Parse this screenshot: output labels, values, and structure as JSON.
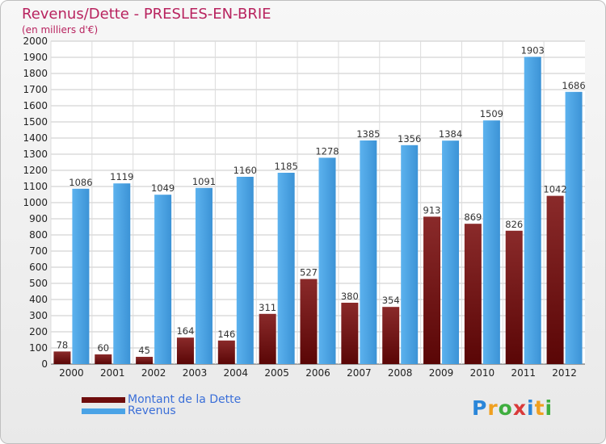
{
  "title": "Revenus/Dette - PRESLES-EN-BRIE",
  "subtitle": "(en milliers d'€)",
  "legend": [
    {
      "label": "Montant de la Dette",
      "color": "#6e0c0c"
    },
    {
      "label": "Revenus",
      "color": "#4aa3e6"
    }
  ],
  "logo": {
    "text": "Proxiti",
    "letters": [
      {
        "ch": "P",
        "color": "#2a86d9"
      },
      {
        "ch": "r",
        "color": "#f0a020"
      },
      {
        "ch": "o",
        "color": "#3fae3f"
      },
      {
        "ch": "x",
        "color": "#d93a3a"
      },
      {
        "ch": "i",
        "color": "#2a86d9"
      },
      {
        "ch": "t",
        "color": "#f0a020"
      },
      {
        "ch": "i",
        "color": "#3fae3f"
      }
    ]
  },
  "chart_data": {
    "type": "bar",
    "categories": [
      "2000",
      "2001",
      "2002",
      "2003",
      "2004",
      "2005",
      "2006",
      "2007",
      "2008",
      "2009",
      "2010",
      "2011",
      "2012"
    ],
    "series": [
      {
        "name": "Montant de la Dette",
        "values": [
          78,
          60,
          45,
          164,
          146,
          311,
          527,
          380,
          354,
          913,
          869,
          826,
          1042
        ],
        "color": "#7a1a1a"
      },
      {
        "name": "Revenus",
        "values": [
          1086,
          1119,
          1049,
          1091,
          1160,
          1185,
          1278,
          1385,
          1356,
          1384,
          1509,
          1903,
          1686
        ],
        "color": "#4aa3e6"
      }
    ],
    "ylim": [
      0,
      2000
    ],
    "ytick_step": 100,
    "grid": true,
    "legend_position": "bottom-left",
    "data_labels": true
  }
}
